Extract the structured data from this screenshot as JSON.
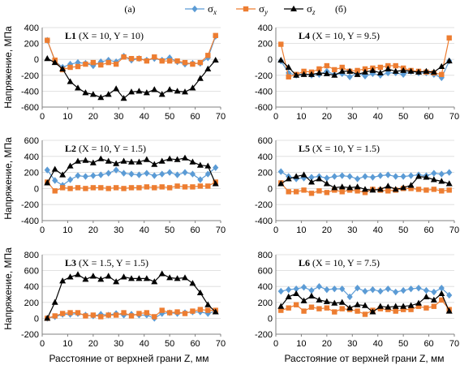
{
  "colors": {
    "sx": "#5b9bd5",
    "sy": "#ed7d31",
    "sz": "#000000",
    "axis": "#808080",
    "grid": "#d9d9d9"
  },
  "labels": {
    "a": "(а)",
    "b": "(б)",
    "ylabel": "Напряжение, МПа",
    "xlabel": "Расстояние от верхней грани Z, мм"
  },
  "legend": [
    {
      "key": "sx",
      "sym": "σ",
      "sub": "x",
      "marker": "diamond"
    },
    {
      "key": "sy",
      "sym": "σ",
      "sub": "y",
      "marker": "square"
    },
    {
      "key": "sz",
      "sym": "σ",
      "sub": "z",
      "marker": "triangle"
    }
  ],
  "chart_data": [
    {
      "id": "L1",
      "type": "line",
      "title_bold": "L1",
      "title_rest": "(X = 10, Y = 10)",
      "ylim": [
        -600,
        400
      ],
      "yticks": [
        -600,
        -400,
        -200,
        0,
        200,
        400
      ],
      "xlim": [
        0,
        70
      ],
      "xticks": [
        0,
        10,
        20,
        30,
        40,
        50,
        60,
        70
      ],
      "x": [
        2,
        5,
        8,
        11,
        14,
        17,
        20,
        23,
        26,
        29,
        32,
        35,
        38,
        41,
        44,
        47,
        50,
        53,
        56,
        59,
        62,
        65,
        68
      ],
      "series": [
        {
          "key": "sx",
          "values": [
            240,
            -20,
            -100,
            -60,
            -40,
            -50,
            -80,
            -30,
            -10,
            -30,
            40,
            -10,
            10,
            -10,
            10,
            -10,
            20,
            -30,
            -60,
            -50,
            -50,
            20,
            290
          ]
        },
        {
          "key": "sy",
          "values": [
            240,
            -10,
            -130,
            -100,
            -90,
            -60,
            -40,
            -70,
            -40,
            -60,
            30,
            10,
            10,
            -20,
            30,
            -20,
            -20,
            -20,
            -40,
            -60,
            -40,
            50,
            300
          ]
        },
        {
          "key": "sz",
          "values": [
            10,
            -40,
            -120,
            -280,
            -360,
            -420,
            -440,
            -480,
            -440,
            -370,
            -490,
            -410,
            -400,
            -420,
            -380,
            -440,
            -380,
            -400,
            -410,
            -360,
            -240,
            -120,
            -10
          ]
        }
      ]
    },
    {
      "id": "L4",
      "type": "line",
      "title_bold": "L4",
      "title_rest": "(X = 10, Y = 9.5)",
      "ylim": [
        -600,
        400
      ],
      "yticks": [
        -600,
        -400,
        -200,
        0,
        200,
        400
      ],
      "xlim": [
        0,
        70
      ],
      "xticks": [
        0,
        10,
        20,
        30,
        40,
        50,
        60,
        70
      ],
      "x": [
        2,
        5,
        8,
        11,
        14,
        17,
        20,
        23,
        26,
        29,
        32,
        35,
        38,
        41,
        44,
        47,
        50,
        53,
        56,
        59,
        62,
        65,
        68
      ],
      "series": [
        {
          "key": "sx",
          "values": [
            -20,
            -170,
            -200,
            -180,
            -200,
            -190,
            -150,
            -190,
            -180,
            -220,
            -170,
            -210,
            -180,
            -200,
            -170,
            -170,
            -190,
            -150,
            -170,
            -170,
            -190,
            -230,
            -20
          ]
        },
        {
          "key": "sy",
          "values": [
            190,
            -220,
            -190,
            -150,
            -160,
            -120,
            -80,
            -130,
            -100,
            -150,
            -140,
            -120,
            -110,
            -100,
            -80,
            -80,
            -110,
            -140,
            -150,
            -160,
            -170,
            -190,
            270
          ]
        },
        {
          "key": "sz",
          "values": [
            -10,
            -100,
            -200,
            -190,
            -190,
            -170,
            -180,
            -200,
            -150,
            -150,
            -190,
            -160,
            -140,
            -170,
            -120,
            -150,
            -140,
            -150,
            -160,
            -150,
            -160,
            -90,
            -20
          ]
        }
      ]
    },
    {
      "id": "L2",
      "type": "line",
      "title_bold": "L2",
      "title_rest": "(X = 10, Y = 1.5)",
      "ylim": [
        -400,
        600
      ],
      "yticks": [
        -400,
        -200,
        0,
        200,
        400,
        600
      ],
      "xlim": [
        0,
        70
      ],
      "xticks": [
        0,
        10,
        20,
        30,
        40,
        50,
        60,
        70
      ],
      "x": [
        2,
        5,
        8,
        11,
        14,
        17,
        20,
        23,
        26,
        29,
        32,
        35,
        38,
        41,
        44,
        47,
        50,
        53,
        56,
        59,
        62,
        65,
        68
      ],
      "series": [
        {
          "key": "sx",
          "values": [
            230,
            100,
            40,
            110,
            160,
            150,
            160,
            170,
            190,
            230,
            190,
            180,
            170,
            190,
            160,
            180,
            200,
            170,
            200,
            180,
            110,
            180,
            260
          ]
        },
        {
          "key": "sy",
          "values": [
            80,
            -30,
            10,
            0,
            10,
            0,
            10,
            10,
            0,
            10,
            0,
            10,
            10,
            20,
            10,
            20,
            10,
            30,
            20,
            20,
            30,
            30,
            80
          ]
        },
        {
          "key": "sz",
          "values": [
            70,
            240,
            170,
            280,
            340,
            350,
            320,
            370,
            340,
            310,
            340,
            330,
            330,
            360,
            300,
            340,
            370,
            360,
            380,
            330,
            290,
            280,
            60
          ]
        }
      ]
    },
    {
      "id": "L5",
      "type": "line",
      "title_bold": "L5",
      "title_rest": "(X = 10, Y = 1.5)",
      "ylim": [
        -400,
        600
      ],
      "yticks": [
        -400,
        -200,
        0,
        200,
        400,
        600
      ],
      "xlim": [
        0,
        70
      ],
      "xticks": [
        0,
        10,
        20,
        30,
        40,
        50,
        60,
        70
      ],
      "x": [
        2,
        5,
        8,
        11,
        14,
        17,
        20,
        23,
        26,
        29,
        32,
        35,
        38,
        41,
        44,
        47,
        50,
        53,
        56,
        59,
        62,
        65,
        68
      ],
      "series": [
        {
          "key": "sx",
          "values": [
            210,
            150,
            120,
            130,
            140,
            150,
            130,
            150,
            160,
            150,
            120,
            150,
            140,
            160,
            170,
            150,
            150,
            160,
            170,
            160,
            190,
            180,
            200
          ]
        },
        {
          "key": "sy",
          "values": [
            70,
            -40,
            -40,
            -20,
            -60,
            -30,
            -50,
            -20,
            -40,
            -20,
            -30,
            -50,
            -10,
            -20,
            -30,
            -20,
            0,
            0,
            -10,
            -20,
            -10,
            -30,
            -20
          ]
        },
        {
          "key": "sz",
          "values": [
            60,
            120,
            150,
            170,
            80,
            120,
            60,
            10,
            20,
            10,
            20,
            -10,
            -20,
            -10,
            30,
            -10,
            10,
            40,
            150,
            140,
            110,
            90,
            60
          ]
        }
      ]
    },
    {
      "id": "L3",
      "type": "line",
      "title_bold": "L3",
      "title_rest": "(X = 1.5, Y = 1.5)",
      "ylim": [
        -200,
        800
      ],
      "yticks": [
        -200,
        0,
        200,
        400,
        600,
        800
      ],
      "xlim": [
        0,
        70
      ],
      "xticks": [
        0,
        10,
        20,
        30,
        40,
        50,
        60,
        70
      ],
      "x": [
        2,
        5,
        8,
        11,
        14,
        17,
        20,
        23,
        26,
        29,
        32,
        35,
        38,
        41,
        44,
        47,
        50,
        53,
        56,
        59,
        62,
        65,
        68
      ],
      "series": [
        {
          "key": "sx",
          "values": [
            0,
            20,
            50,
            50,
            60,
            40,
            30,
            50,
            40,
            60,
            40,
            50,
            40,
            40,
            0,
            60,
            70,
            60,
            70,
            80,
            80,
            60,
            90
          ]
        },
        {
          "key": "sy",
          "values": [
            0,
            30,
            60,
            70,
            70,
            30,
            40,
            20,
            40,
            40,
            70,
            30,
            60,
            70,
            20,
            100,
            70,
            80,
            60,
            90,
            110,
            100,
            100
          ]
        },
        {
          "key": "sz",
          "values": [
            0,
            200,
            470,
            520,
            550,
            490,
            530,
            490,
            530,
            460,
            520,
            500,
            500,
            500,
            460,
            560,
            510,
            500,
            510,
            440,
            320,
            170,
            80
          ]
        }
      ]
    },
    {
      "id": "L6",
      "type": "line",
      "title_bold": "L6",
      "title_rest": "(X = 10, Y = 7.5)",
      "ylim": [
        -200,
        800
      ],
      "yticks": [
        -200,
        0,
        200,
        400,
        600,
        800
      ],
      "xlim": [
        0,
        70
      ],
      "xticks": [
        0,
        10,
        20,
        30,
        40,
        50,
        60,
        70
      ],
      "x": [
        2,
        5,
        8,
        11,
        14,
        17,
        20,
        23,
        26,
        29,
        32,
        35,
        38,
        41,
        44,
        47,
        50,
        53,
        56,
        59,
        62,
        65,
        68
      ],
      "series": [
        {
          "key": "sx",
          "values": [
            340,
            360,
            370,
            390,
            350,
            400,
            360,
            370,
            370,
            270,
            380,
            340,
            360,
            340,
            370,
            330,
            350,
            370,
            380,
            350,
            330,
            380,
            290
          ]
        },
        {
          "key": "sy",
          "values": [
            100,
            130,
            170,
            90,
            140,
            120,
            130,
            80,
            120,
            110,
            90,
            50,
            100,
            120,
            110,
            90,
            110,
            110,
            150,
            130,
            150,
            230,
            110
          ]
        },
        {
          "key": "sz",
          "values": [
            150,
            270,
            310,
            220,
            280,
            230,
            210,
            190,
            200,
            130,
            170,
            160,
            80,
            150,
            140,
            150,
            150,
            160,
            190,
            270,
            230,
            310,
            90
          ]
        }
      ]
    }
  ]
}
